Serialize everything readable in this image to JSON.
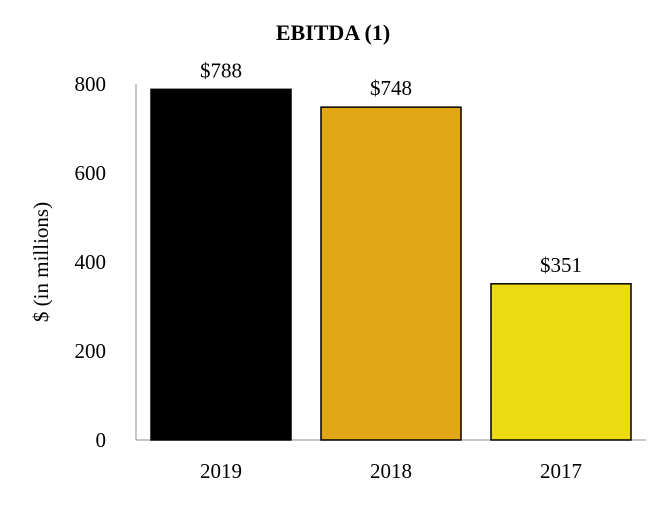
{
  "chart_data": {
    "type": "bar",
    "title": "EBITDA (1)",
    "xlabel": "",
    "ylabel": "$ (in millions)",
    "categories": [
      "2019",
      "2018",
      "2017"
    ],
    "values": [
      788,
      748,
      351
    ],
    "data_labels": [
      "$788",
      "$748",
      "$351"
    ],
    "bar_colors": [
      "#000000",
      "#E3A716",
      "#ECDA12"
    ],
    "ylim": [
      0,
      800
    ],
    "yticks": [
      0,
      200,
      400,
      600,
      800
    ],
    "ytick_labels": [
      "0",
      "200",
      "400",
      "600",
      "800"
    ],
    "grid": false,
    "legend": "none"
  }
}
